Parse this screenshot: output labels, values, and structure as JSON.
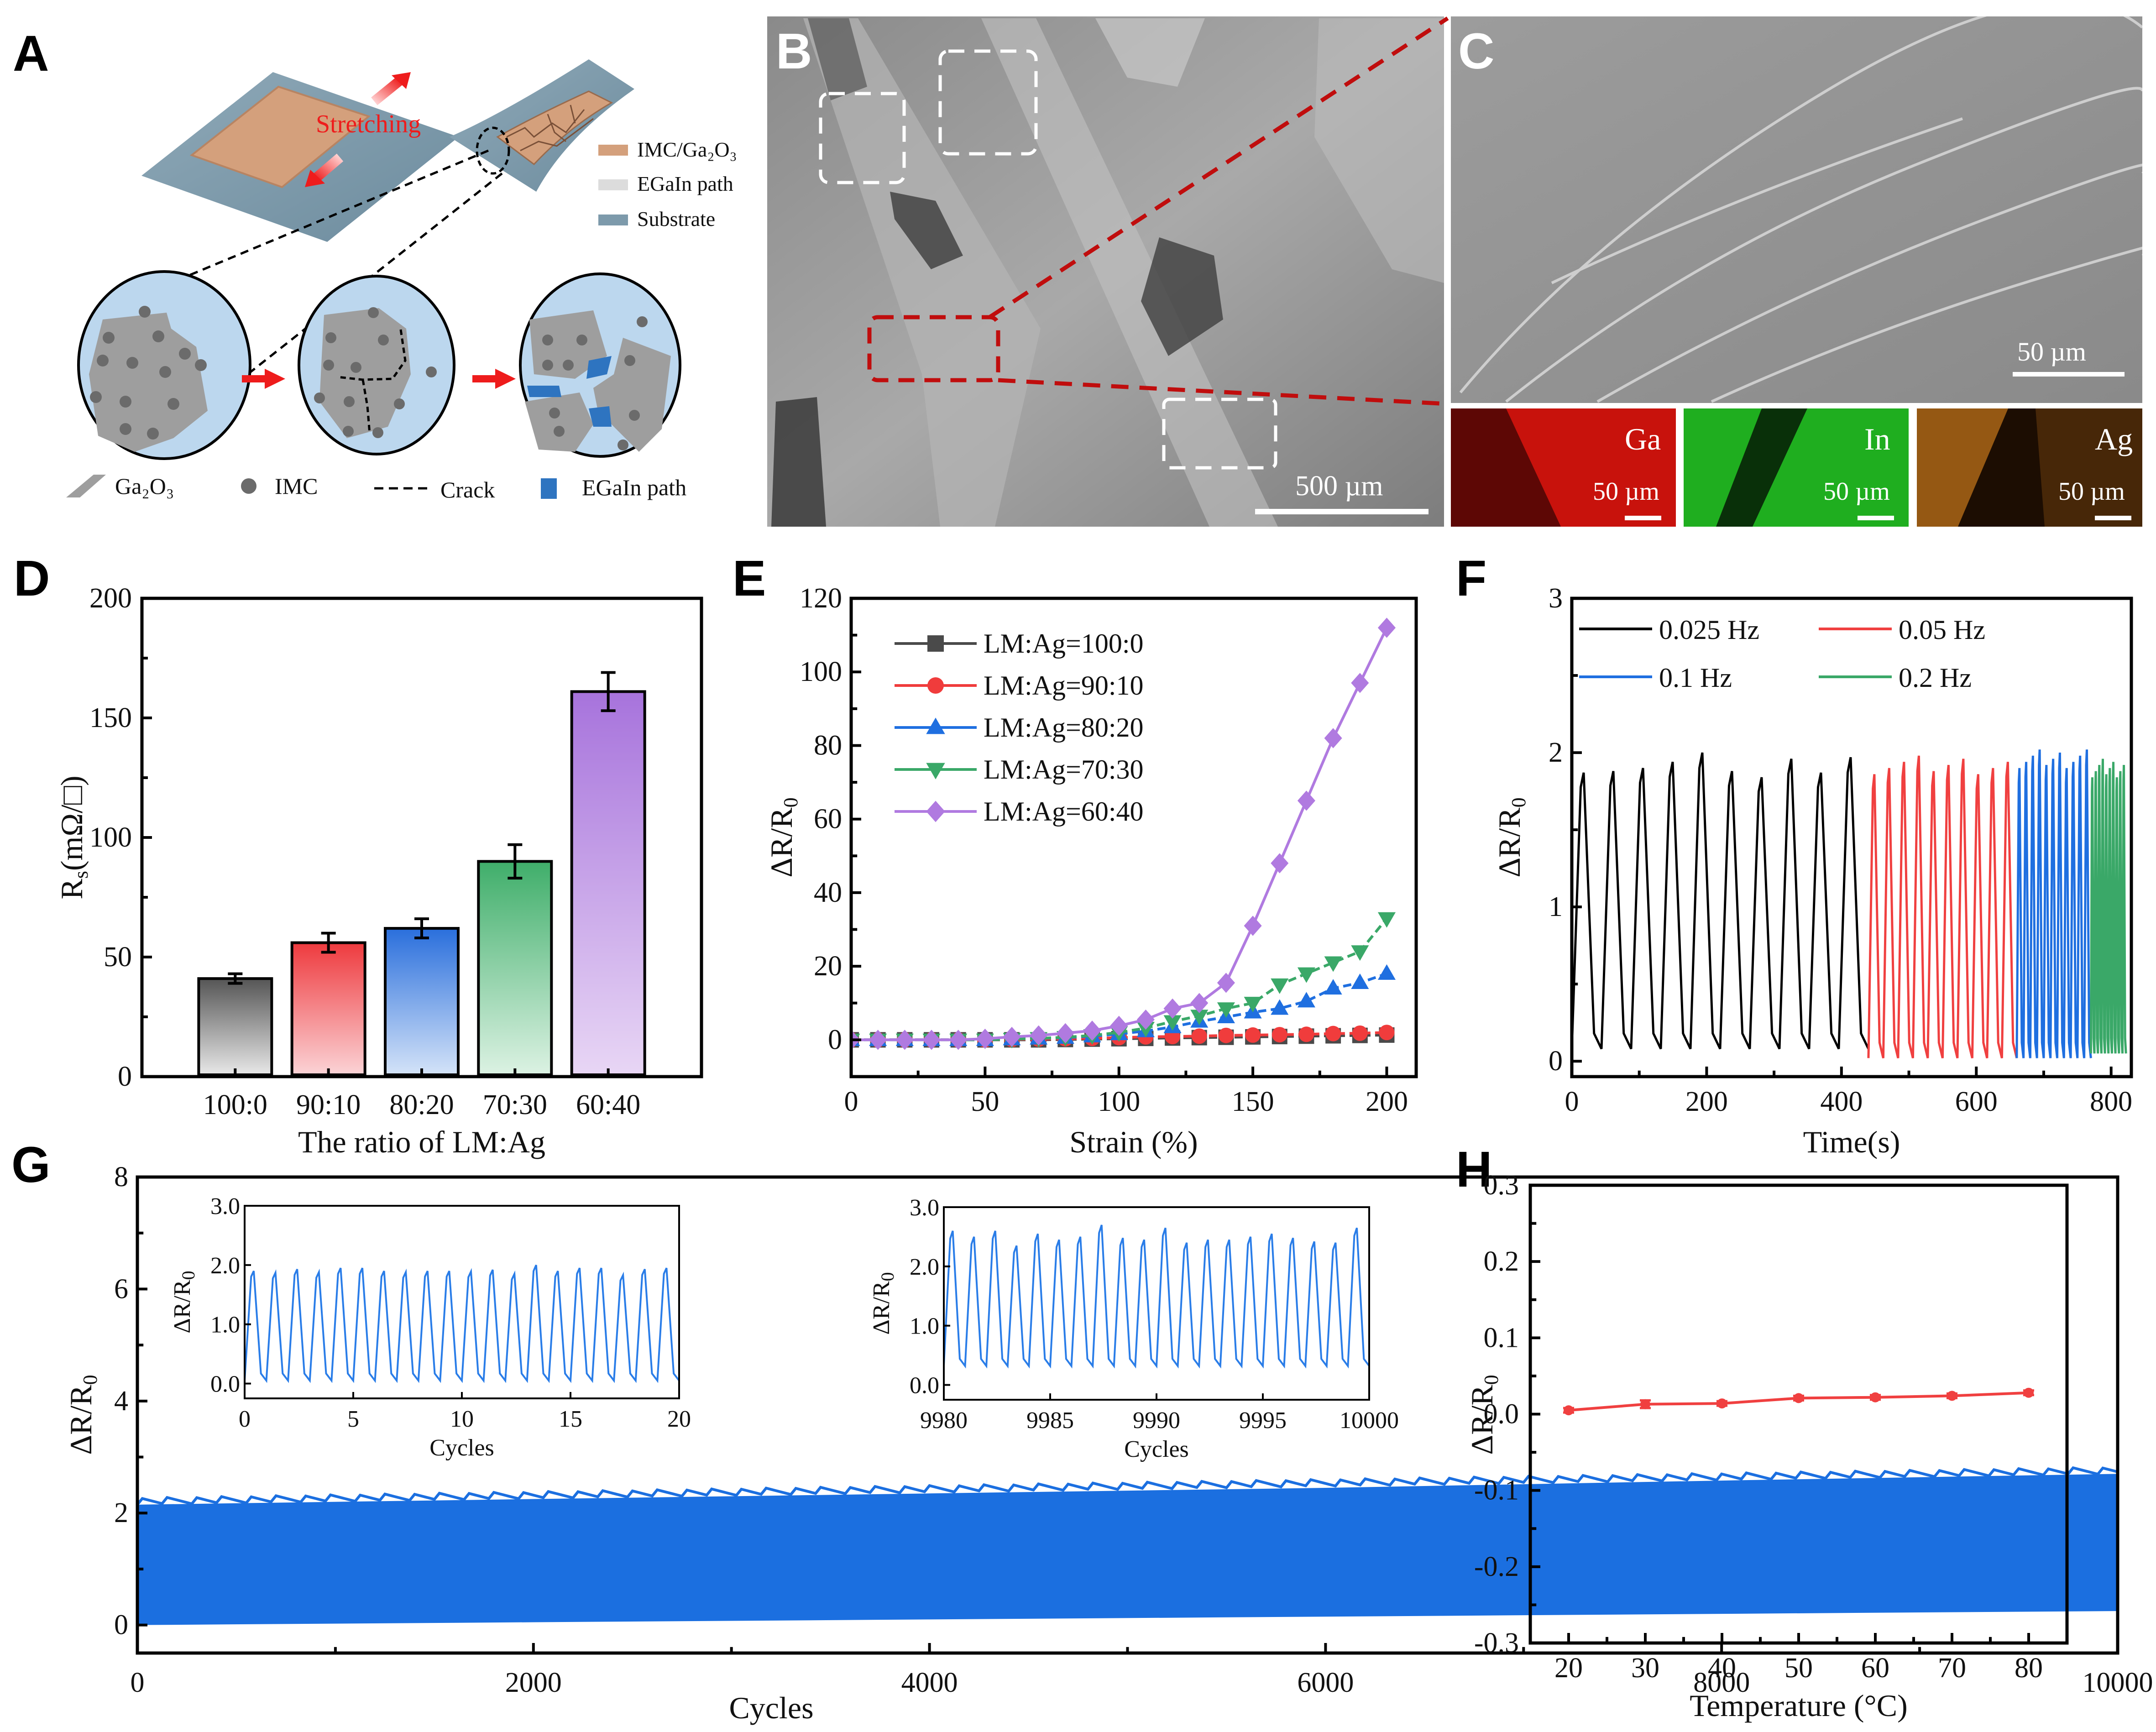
{
  "figure": {
    "panel_letters": [
      "A",
      "B",
      "C",
      "D",
      "E",
      "F",
      "G",
      "H"
    ]
  },
  "panel_a": {
    "stretching_label": "Stretching",
    "legend": [
      {
        "label": "IMC/Ga₂O₃",
        "color": "#d4a07c"
      },
      {
        "label": "EGaIn path",
        "color": "#dcdcdc"
      },
      {
        "label": "Substrate",
        "color": "#7d9aab"
      }
    ],
    "bottom_legend": [
      {
        "label": "Ga₂O₃",
        "icon": "parallelogram-icon",
        "color": "#9e9e9e"
      },
      {
        "label": "IMC",
        "icon": "dot-icon",
        "color": "#6b6b6b"
      },
      {
        "label": "Crack",
        "icon": "dashed-line-icon",
        "color": "#000000"
      },
      {
        "label": "EGaIn path",
        "icon": "square-icon",
        "color": "#2e74c0"
      }
    ],
    "circle_fill": "#bcd7ee",
    "arrow_color": "#ee1c1c"
  },
  "panel_b": {
    "scale_bar": "500 µm"
  },
  "panel_c": {
    "scale_bar": "50 µm",
    "eds_maps": [
      {
        "element": "Ga",
        "scale": "50 µm",
        "color": "#c8120c"
      },
      {
        "element": "In",
        "scale": "50 µm",
        "color": "#1fae1f"
      },
      {
        "element": "Ag",
        "scale": "50 µm",
        "color": "#c9791b"
      }
    ]
  },
  "chart_data": [
    {
      "id": "D",
      "type": "bar",
      "title": "",
      "xlabel": "The ratio of LM:Ag",
      "ylabel": "Rs(mΩ/□)",
      "categories": [
        "100:0",
        "90:10",
        "80:20",
        "70:30",
        "60:40"
      ],
      "values": [
        41,
        56,
        62,
        90,
        161
      ],
      "errors": [
        2,
        4,
        4,
        7,
        8
      ],
      "colors": [
        "#555555",
        "#ee3a3e",
        "#2a6fdc",
        "#3fae6a",
        "#a773dc"
      ],
      "colors_light": [
        "#e8e8e8",
        "#fbd3d6",
        "#d4e3f8",
        "#dcf2e3",
        "#e8d6f5"
      ],
      "ylim": [
        0,
        200
      ],
      "yticks": [
        0,
        50,
        100,
        150,
        200
      ],
      "grid": false
    },
    {
      "id": "E",
      "type": "line",
      "xlabel": "Strain (%)",
      "ylabel": "ΔR/R0",
      "x": [
        0,
        10,
        20,
        30,
        40,
        50,
        60,
        70,
        80,
        90,
        100,
        110,
        120,
        130,
        140,
        150,
        160,
        170,
        180,
        190,
        200
      ],
      "series": [
        {
          "name": "LM:Ag=100:0",
          "marker": "square",
          "color": "#4a4a4a",
          "dashed": true,
          "values": [
            0,
            0,
            0,
            0,
            0,
            0,
            0,
            0,
            0.1,
            0.2,
            0.3,
            0.4,
            0.5,
            0.6,
            0.7,
            0.8,
            0.9,
            1.0,
            1.1,
            1.2,
            1.3
          ]
        },
        {
          "name": "LM:Ag=90:10",
          "marker": "circle",
          "color": "#f03c3c",
          "dashed": true,
          "values": [
            0,
            0,
            0,
            0,
            0,
            0,
            0.1,
            0.2,
            0.3,
            0.4,
            0.6,
            0.8,
            0.9,
            1.0,
            1.2,
            1.3,
            1.4,
            1.5,
            1.7,
            1.8,
            2.0
          ]
        },
        {
          "name": "LM:Ag=80:20",
          "marker": "triangle-up",
          "color": "#1f6fe0",
          "dashed": true,
          "values": [
            0,
            0,
            0,
            0,
            0,
            0,
            0.2,
            0.4,
            0.6,
            1.0,
            1.6,
            2.4,
            3.5,
            5,
            6.2,
            7.5,
            8.5,
            10.5,
            14,
            15.5,
            18
          ]
        },
        {
          "name": "LM:Ag=70:30",
          "marker": "triangle-down",
          "color": "#3aa868",
          "dashed": true,
          "values": [
            0,
            0,
            0,
            0,
            0,
            0,
            0.2,
            0.4,
            0.7,
            1.2,
            2.0,
            3.2,
            5,
            6.5,
            8.5,
            10,
            15,
            18,
            21,
            24,
            33
          ]
        },
        {
          "name": "LM:Ag=60:40",
          "marker": "diamond",
          "color": "#b07ae0",
          "dashed": false,
          "values": [
            0,
            0,
            0,
            0,
            0,
            0.3,
            0.8,
            1.2,
            1.8,
            2.5,
            3.8,
            5.5,
            8.5,
            10,
            15.5,
            31,
            48,
            65,
            82,
            97,
            112
          ]
        }
      ],
      "xlim": [
        0,
        211
      ],
      "ylim": [
        -10,
        120
      ],
      "xticks": [
        0,
        50,
        100,
        150,
        200
      ],
      "yticks": [
        0,
        20,
        40,
        60,
        80,
        100,
        120
      ],
      "legend_position": "top-left",
      "grid": false
    },
    {
      "id": "F",
      "type": "line",
      "xlabel": "Time(s)",
      "ylabel": "ΔR/R0",
      "series": [
        {
          "name": "0.025 Hz",
          "color": "#000000",
          "t_start": 0,
          "t_end": 440,
          "cycles": 10,
          "peak": 1.9,
          "trough": 0.08
        },
        {
          "name": "0.05 Hz",
          "color": "#f04040",
          "t_start": 440,
          "t_end": 660,
          "cycles": 10,
          "peak": 1.92,
          "trough": 0.02
        },
        {
          "name": "0.1 Hz",
          "color": "#1f6fe0",
          "t_start": 660,
          "t_end": 770,
          "cycles": 11,
          "peak": 1.96,
          "trough": 0.02
        },
        {
          "name": "0.2 Hz",
          "color": "#3aa868",
          "t_start": 770,
          "t_end": 822,
          "cycles": 10,
          "peak": 1.9,
          "trough": 0.05
        }
      ],
      "peak_values_0_025Hz": [
        1.87,
        1.88,
        1.9,
        1.94,
        2.0,
        1.88,
        1.84,
        1.96,
        1.87,
        1.97
      ],
      "xlim": [
        0,
        830
      ],
      "ylim": [
        -0.1,
        3
      ],
      "xticks": [
        0,
        200,
        400,
        600,
        800
      ],
      "yticks": [
        0,
        1,
        2,
        3
      ],
      "legend_position": "top",
      "legend_columns": 2,
      "grid": false
    },
    {
      "id": "G",
      "type": "area",
      "xlabel": "Cycles",
      "ylabel": "ΔR/R0",
      "envelope": {
        "x": [
          0,
          2000,
          4000,
          6000,
          8000,
          10000
        ],
        "upper": [
          2.15,
          2.25,
          2.35,
          2.45,
          2.58,
          2.7
        ],
        "lower": [
          0.0,
          0.05,
          0.1,
          0.15,
          0.2,
          0.25
        ]
      },
      "color": "#1b6fe0",
      "xlim": [
        0,
        10000
      ],
      "ylim": [
        -0.5,
        8
      ],
      "xticks": [
        0,
        2000,
        4000,
        6000,
        8000,
        10000
      ],
      "yticks": [
        0,
        2,
        4,
        6,
        8
      ],
      "insets": [
        {
          "xlabel": "Cycles",
          "ylabel": "ΔR/R0",
          "xlim": [
            0,
            20
          ],
          "ylim": [
            -0.25,
            3.0
          ],
          "xticks": [
            0,
            5,
            10,
            15,
            20
          ],
          "yticks": [
            "0.0",
            "1.0",
            "2.0",
            "3.0"
          ],
          "cycles": 20,
          "x_start": 0,
          "peaks": [
            1.9,
            1.87,
            1.93,
            1.88,
            1.95,
            1.95,
            1.9,
            1.88,
            1.9,
            1.9,
            1.89,
            1.92,
            1.85,
            2.0,
            1.9,
            1.95,
            1.95,
            1.83,
            1.93,
            1.95
          ],
          "trough": 0.05
        },
        {
          "xlabel": "Cycles",
          "ylabel": "ΔR/R0",
          "xlim": [
            9980,
            10000
          ],
          "ylim": [
            -0.25,
            3.0
          ],
          "xticks": [
            9980,
            9985,
            9990,
            9995,
            10000
          ],
          "yticks": [
            "0.0",
            "1.0",
            "2.0",
            "3.0"
          ],
          "cycles": 20,
          "x_start": 9980,
          "peaks": [
            2.6,
            2.5,
            2.6,
            2.35,
            2.55,
            2.45,
            2.5,
            2.7,
            2.48,
            2.45,
            2.65,
            2.4,
            2.45,
            2.45,
            2.5,
            2.55,
            2.48,
            2.42,
            2.4,
            2.65
          ],
          "trough": 0.32
        }
      ],
      "grid": false
    },
    {
      "id": "H",
      "type": "line",
      "xlabel": "Temperature (°C)",
      "ylabel": "ΔR/R0",
      "x": [
        20,
        30,
        40,
        50,
        60,
        70,
        80
      ],
      "series": [
        {
          "name": "ΔR/R0",
          "color": "#f04040",
          "values": [
            0.005,
            0.013,
            0.014,
            0.021,
            0.022,
            0.024,
            0.028
          ],
          "errors": [
            0.003,
            0.005,
            0.003,
            0.003,
            0.003,
            0.003,
            0.003
          ]
        }
      ],
      "xlim": [
        15,
        85
      ],
      "ylim": [
        -0.3,
        0.3
      ],
      "xticks": [
        20,
        30,
        40,
        50,
        60,
        70,
        80
      ],
      "yticks": [
        "-0.3",
        "-0.2",
        "-0.1",
        "0.0",
        "0.1",
        "0.2",
        "0.3"
      ],
      "grid": false
    }
  ]
}
